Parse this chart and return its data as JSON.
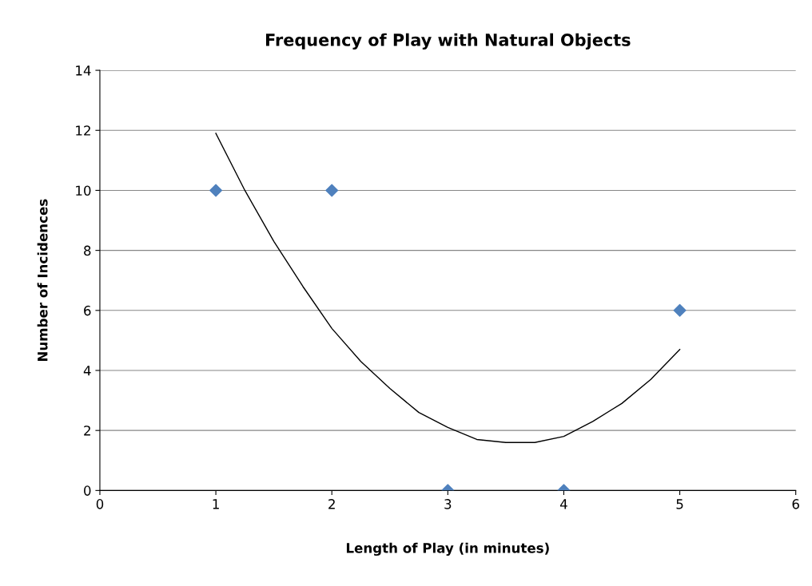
{
  "chart_data": {
    "type": "scatter",
    "title": "Frequency of Play with Natural Objects",
    "xlabel": "Length of Play (in minutes)",
    "ylabel": "Number of Incidences",
    "series": [
      {
        "color": "#4f81bd",
        "marker": "diamond",
        "x": [
          1,
          2,
          3,
          4,
          5
        ],
        "values": [
          10,
          10,
          0,
          0,
          6
        ]
      },
      {
        "type": "line",
        "color": "#000000",
        "marker": "none",
        "line_style": "solid",
        "x": [
          1,
          1.25,
          1.5,
          1.75,
          2,
          2.25,
          2.5,
          2.75,
          3,
          3.25,
          3.5,
          3.75,
          4,
          4.25,
          4.5,
          4.75,
          5
        ],
        "values": [
          11.9,
          10.0,
          8.3,
          6.8,
          5.4,
          4.3,
          3.4,
          2.6,
          2.1,
          1.7,
          1.6,
          1.6,
          1.8,
          2.3,
          2.9,
          3.7,
          4.7
        ]
      }
    ],
    "xlim": [
      0,
      6
    ],
    "xticks": [
      0,
      1,
      2,
      3,
      4,
      5,
      6
    ],
    "ylim": [
      0,
      14
    ],
    "yticks": [
      0,
      2,
      4,
      6,
      8,
      10,
      12,
      14
    ],
    "grid": "y",
    "legend": false
  }
}
